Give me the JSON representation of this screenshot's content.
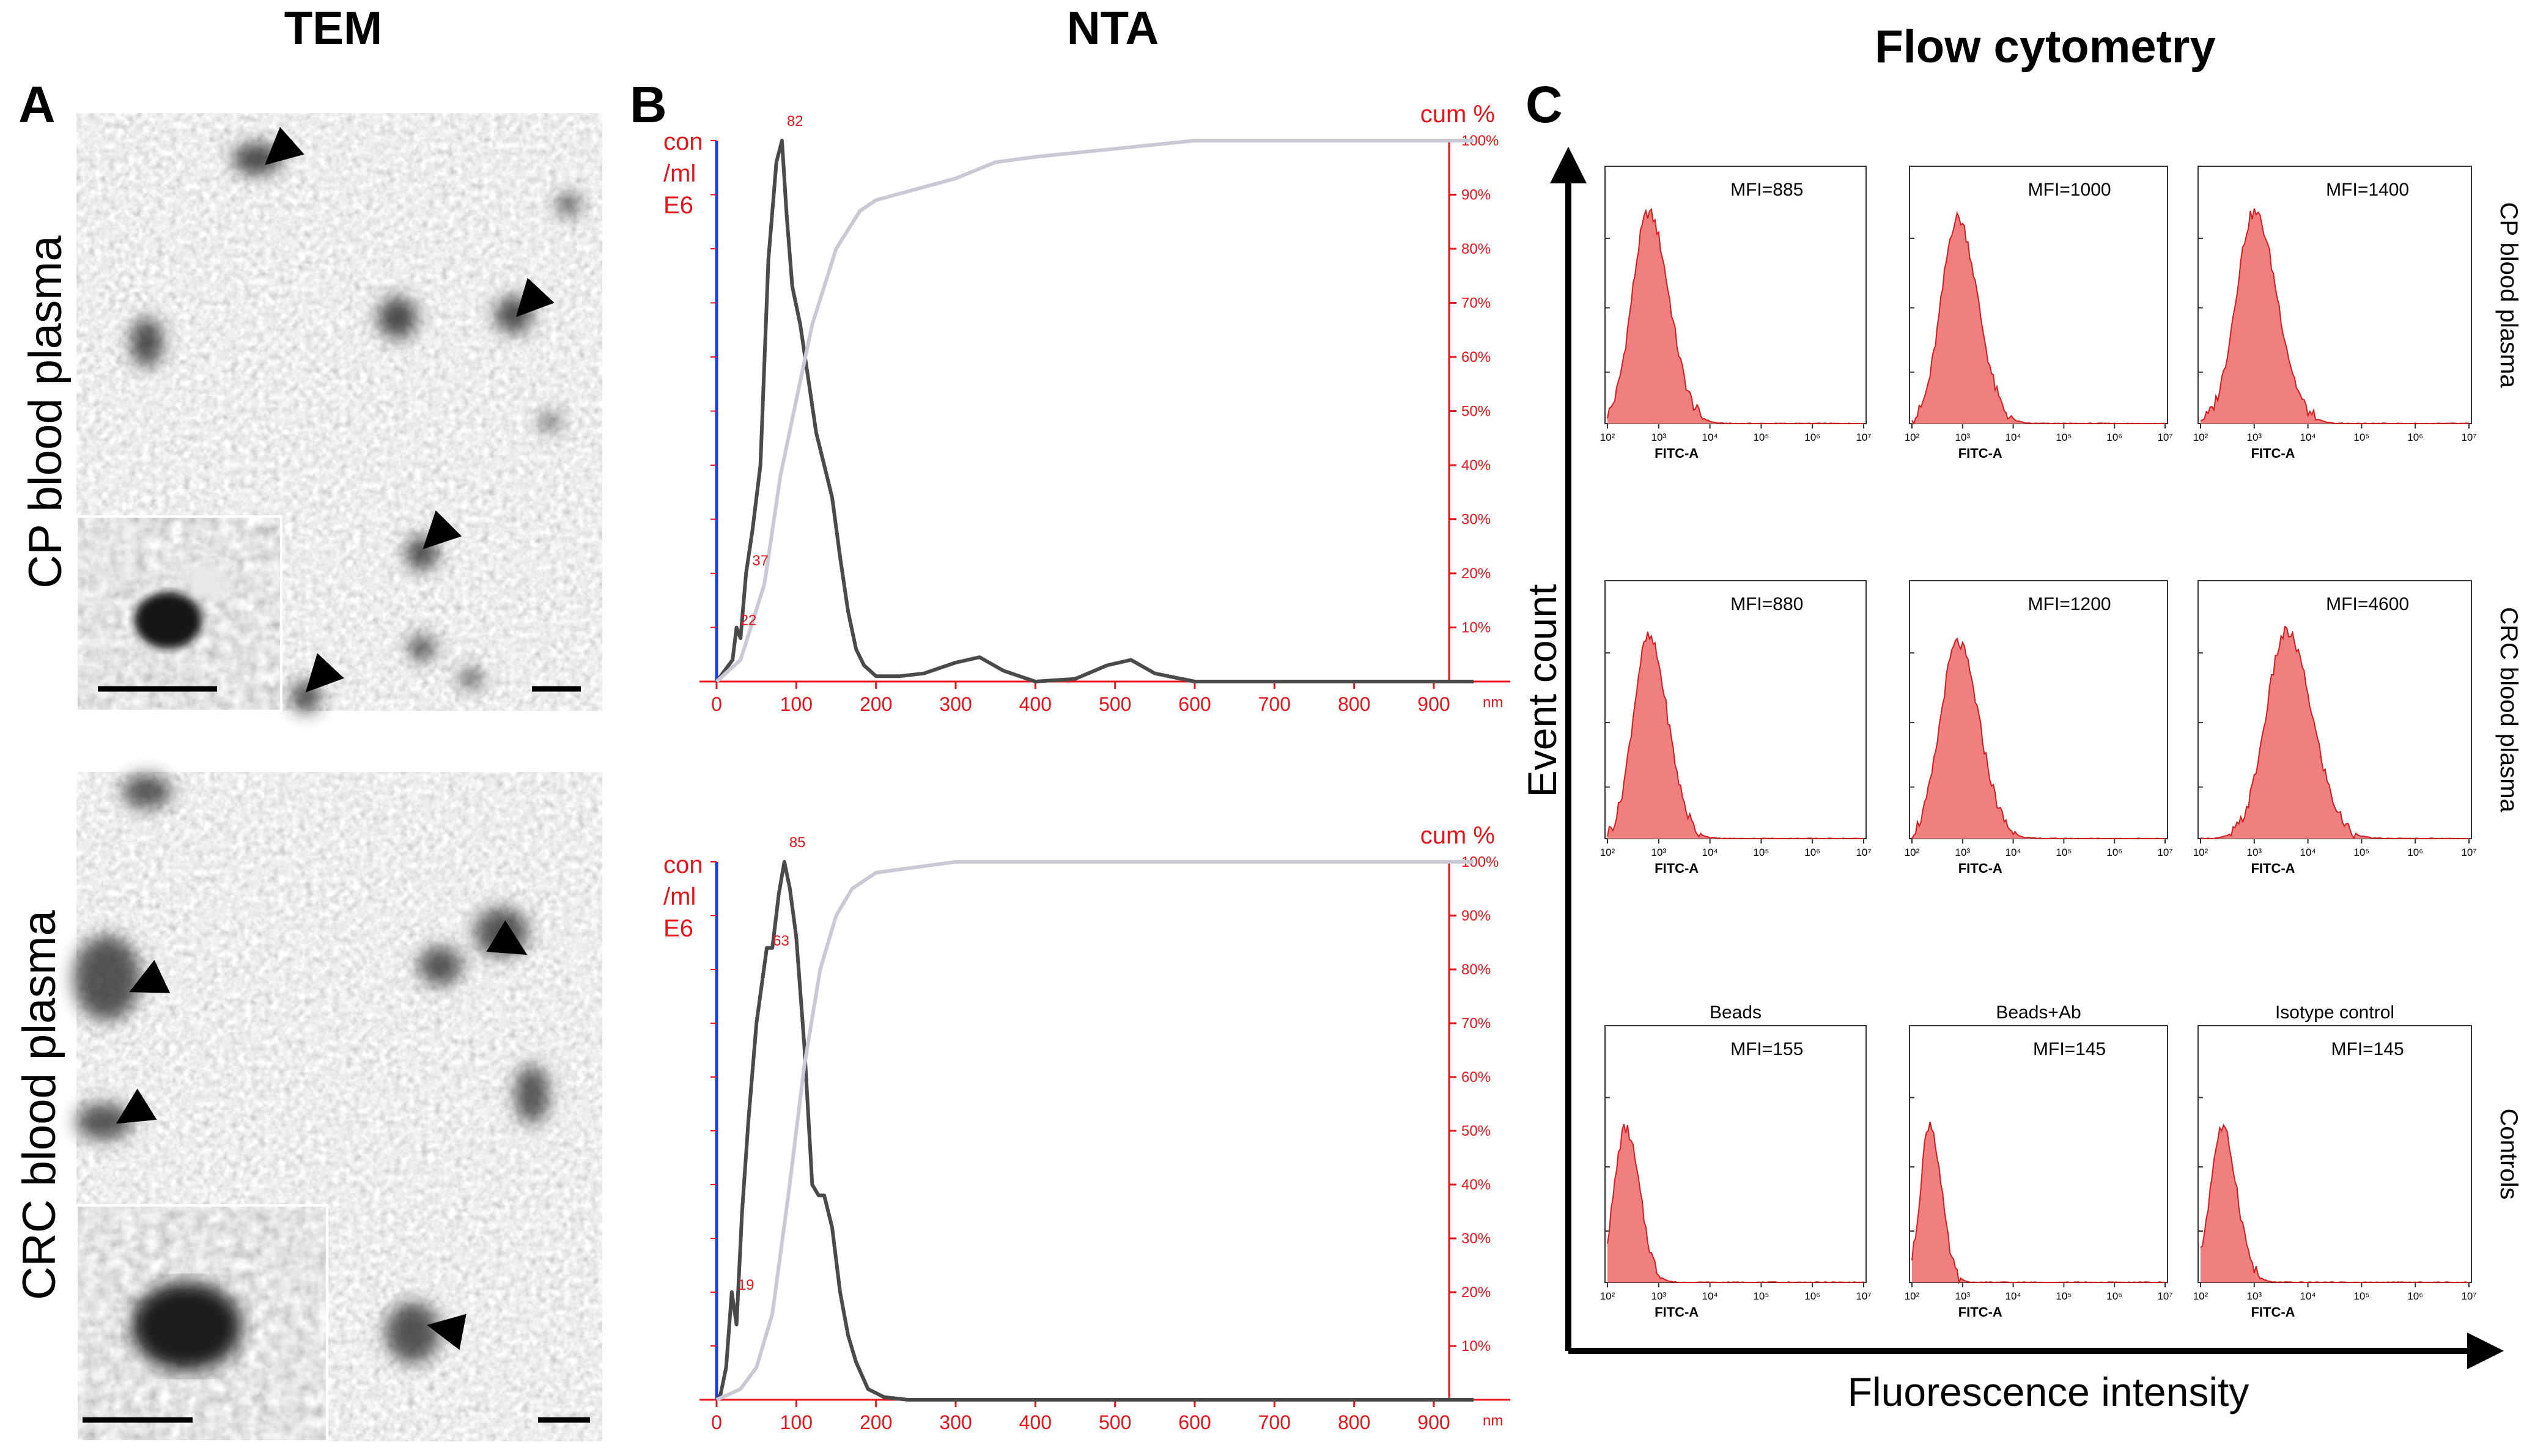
{
  "headers": {
    "tem": "TEM",
    "nta": "NTA",
    "flow": "Flow cytometry"
  },
  "panel_labels": {
    "a": "A",
    "b": "B",
    "c": "C"
  },
  "tem_row_labels": [
    "CP blood plasma",
    "CRC blood plasma"
  ],
  "colors": {
    "nta_red": "#e8141b",
    "nta_blue": "#1f3de0",
    "fc_fill": "#f08080",
    "fc_line": "#d11d1d"
  },
  "chart_data": [
    {
      "type": "line",
      "panel": "B-top",
      "ylabel_left": [
        "con",
        "/ml",
        "E6"
      ],
      "ylabel_right": "cum %",
      "xunit": "nm",
      "xlim": [
        0,
        950
      ],
      "x_ticks": [
        "0",
        "100",
        "200",
        "300",
        "400",
        "500",
        "600",
        "700",
        "800",
        "900"
      ],
      "y_right_ticks": [
        "10%",
        "20%",
        "30%",
        "40%",
        "50%",
        "60%",
        "70%",
        "80%",
        "90%",
        "100%"
      ],
      "peak_labels": [
        "82",
        "37",
        "22"
      ],
      "peak_label_x": [
        82,
        37,
        22
      ],
      "peak_label_y": [
        1.0,
        0.21,
        0.1
      ],
      "series": [
        {
          "name": "concentration",
          "x": [
            0,
            10,
            20,
            25,
            30,
            37,
            45,
            55,
            65,
            75,
            82,
            88,
            95,
            105,
            115,
            125,
            135,
            145,
            155,
            165,
            175,
            185,
            200,
            230,
            260,
            300,
            330,
            360,
            400,
            450,
            490,
            520,
            550,
            600,
            700,
            950
          ],
          "y": [
            0,
            0.02,
            0.04,
            0.1,
            0.08,
            0.2,
            0.28,
            0.4,
            0.78,
            0.96,
            1.0,
            0.86,
            0.73,
            0.66,
            0.56,
            0.46,
            0.4,
            0.34,
            0.23,
            0.13,
            0.06,
            0.03,
            0.01,
            0.01,
            0.015,
            0.035,
            0.045,
            0.02,
            0.0,
            0.005,
            0.03,
            0.04,
            0.015,
            0.0,
            0.0,
            0.0
          ]
        },
        {
          "name": "cumulative",
          "x": [
            0,
            30,
            60,
            80,
            100,
            120,
            150,
            180,
            200,
            250,
            300,
            350,
            400,
            500,
            600,
            700,
            800,
            950
          ],
          "y": [
            0,
            0.04,
            0.18,
            0.38,
            0.52,
            0.66,
            0.8,
            0.87,
            0.89,
            0.91,
            0.93,
            0.96,
            0.97,
            0.985,
            1.0,
            1.0,
            1.0,
            1.0
          ]
        }
      ]
    },
    {
      "type": "line",
      "panel": "B-bottom",
      "ylabel_left": [
        "con",
        "/ml",
        "E6"
      ],
      "ylabel_right": "cum %",
      "xunit": "nm",
      "xlim": [
        0,
        950
      ],
      "x_ticks": [
        "0",
        "100",
        "200",
        "300",
        "400",
        "500",
        "600",
        "700",
        "800",
        "900"
      ],
      "y_right_ticks": [
        "10%",
        "20%",
        "30%",
        "40%",
        "50%",
        "60%",
        "70%",
        "80%",
        "90%",
        "100%"
      ],
      "peak_labels": [
        "85",
        "63",
        "19"
      ],
      "peak_label_x": [
        85,
        63,
        19
      ],
      "peak_label_y": [
        1.0,
        0.84,
        0.2
      ],
      "series": [
        {
          "name": "concentration",
          "x": [
            0,
            5,
            12,
            19,
            25,
            32,
            40,
            50,
            63,
            70,
            78,
            85,
            92,
            100,
            110,
            120,
            128,
            135,
            145,
            155,
            165,
            175,
            190,
            210,
            240,
            300,
            400,
            950
          ],
          "y": [
            0,
            0.01,
            0.06,
            0.2,
            0.14,
            0.35,
            0.52,
            0.7,
            0.84,
            0.84,
            0.94,
            1.0,
            0.95,
            0.86,
            0.66,
            0.4,
            0.38,
            0.38,
            0.32,
            0.2,
            0.12,
            0.07,
            0.02,
            0.005,
            0.0,
            0.0,
            0.0,
            0.0
          ]
        },
        {
          "name": "cumulative",
          "x": [
            0,
            30,
            50,
            70,
            90,
            110,
            130,
            150,
            170,
            200,
            250,
            300,
            400,
            600,
            950
          ],
          "y": [
            0,
            0.02,
            0.06,
            0.16,
            0.38,
            0.62,
            0.8,
            0.9,
            0.95,
            0.98,
            0.99,
            1.0,
            1.0,
            1.0,
            1.0
          ]
        }
      ]
    }
  ],
  "flow": {
    "yaxis_label": "Event count",
    "xaxis_label": "Fluorescence intensity",
    "x_axis_name": "FITC-A",
    "decade_ticks": [
      "10²",
      "10³",
      "10⁴",
      "10⁵",
      "10⁶",
      "10⁷"
    ],
    "row_labels": [
      "CP blood plasma",
      "CRC blood plasma",
      "Controls"
    ],
    "rows": [
      {
        "hists": [
          {
            "title": "",
            "mfi": "MFI=885",
            "peak_log": 2.8,
            "width": 0.32,
            "h": 0.82
          },
          {
            "title": "",
            "mfi": "MFI=1000",
            "peak_log": 2.9,
            "width": 0.32,
            "h": 0.8
          },
          {
            "title": "",
            "mfi": "MFI=1400",
            "peak_log": 3.0,
            "width": 0.34,
            "h": 0.82
          }
        ]
      },
      {
        "hists": [
          {
            "title": "",
            "mfi": "MFI=880",
            "peak_log": 2.8,
            "width": 0.3,
            "h": 0.78
          },
          {
            "title": "",
            "mfi": "MFI=1200",
            "peak_log": 2.9,
            "width": 0.34,
            "h": 0.76
          },
          {
            "title": "",
            "mfi": "MFI=4600",
            "peak_log": 3.6,
            "width": 0.38,
            "h": 0.8
          }
        ]
      },
      {
        "hists": [
          {
            "title": "Beads",
            "mfi": "MFI=155",
            "peak_log": 2.35,
            "width": 0.22,
            "h": 0.6
          },
          {
            "title": "Beads+Ab",
            "mfi": "MFI=145",
            "peak_log": 2.35,
            "width": 0.18,
            "h": 0.62
          },
          {
            "title": "Isotype control",
            "mfi": "MFI=145",
            "peak_log": 2.4,
            "width": 0.22,
            "h": 0.6
          }
        ]
      }
    ]
  }
}
